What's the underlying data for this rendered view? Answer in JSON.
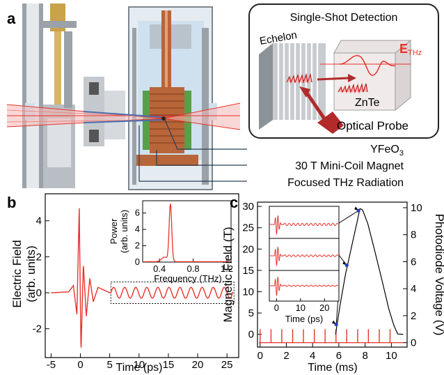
{
  "panel_labels": {
    "a": "a",
    "b": "b",
    "c": "c"
  },
  "panel_a": {
    "inset_title": "Single-Shot Detection",
    "echelon_label": "Echelon",
    "thz_label_main": "E",
    "thz_label_sub": "THz",
    "znte_label": "ZnTe",
    "probe_label": "Optical Probe",
    "callouts": [
      {
        "main": "YFeO",
        "sub": "3"
      },
      {
        "main": "30 T Mini-Coil Magnet",
        "sub": ""
      },
      {
        "main": "Focused THz Radiation",
        "sub": ""
      }
    ],
    "colors": {
      "beam_red": "#e8332a",
      "pink_light": "#f4b6b4",
      "steel": "#b9bec4",
      "copper": "#b8653a",
      "coil_green": "#5a9e4a",
      "dewar_blue": "#cfe1ee"
    }
  },
  "chart_data": [
    {
      "type": "line",
      "panel": "b",
      "xlabel": "Time (ps)",
      "ylabel": "Electric Field\n(arb. units)",
      "xlim": [
        -6,
        27
      ],
      "ylim": [
        -3.6,
        5.5
      ],
      "xticks": [
        -5,
        0,
        5,
        10,
        15,
        20,
        25
      ],
      "yticks": [
        -2,
        0,
        2,
        4
      ],
      "color": "#e8332a",
      "waveform_keypoints": {
        "t": [
          -5,
          -2,
          -1.2,
          -0.6,
          -0.2,
          0.1,
          0.5,
          1.0,
          1.6,
          2.2,
          3.0,
          5.0
        ],
        "E": [
          0,
          0.05,
          0.4,
          -1.2,
          4.7,
          -3.3,
          1.6,
          -1.3,
          0.8,
          -0.5,
          0.3,
          0
        ]
      },
      "ringing": {
        "t_start": 5.2,
        "t_end": 26,
        "frequency_thz": 0.53,
        "amplitude": 0.3
      },
      "zoom_box": {
        "t": [
          5.2,
          26.2
        ],
        "E": [
          -0.6,
          0.6
        ]
      },
      "inset": {
        "type": "line",
        "xlabel": "Frequency (THz)",
        "ylabel": "Power\n(arb. units)",
        "xlim": [
          0.2,
          1.25
        ],
        "ylim": [
          0,
          7.5
        ],
        "xticks": [
          0.4,
          0.8,
          1.2
        ],
        "xtick_labels": [
          "0.4",
          "0.8",
          "1.2"
        ],
        "yticks": [
          0,
          2,
          4,
          6
        ],
        "peak": {
          "x": 0.53,
          "y": 7.0
        }
      }
    },
    {
      "type": "line",
      "panel": "c",
      "xlabel": "Time (ms)",
      "ylabel": "Magnetic Field (T)",
      "y2label": "Photodiode Voltage (V)",
      "xlim": [
        -0.2,
        11.2
      ],
      "ylim": [
        -3,
        31
      ],
      "xticks": [
        0,
        2,
        4,
        6,
        8,
        10
      ],
      "yticks": [
        0,
        5,
        10,
        15,
        20,
        25,
        30
      ],
      "y2ticks": [
        0,
        2,
        4,
        6,
        8,
        10
      ],
      "field_pulse": {
        "t": [
          5.75,
          6.1,
          6.5,
          7.0,
          7.4,
          7.6,
          7.8,
          8.2,
          8.7,
          9.3,
          9.8,
          10.2,
          10.5
        ],
        "B": [
          0,
          7,
          14,
          21,
          26.5,
          29.5,
          29.2,
          26,
          20,
          12.5,
          6,
          2,
          0
        ]
      },
      "sample_points": [
        {
          "t": 5.8,
          "B": 2.3
        },
        {
          "t": 6.6,
          "B": 16.2
        },
        {
          "t": 7.5,
          "B": 29.0
        }
      ],
      "photodiode_spike_times": [
        0.0,
        0.83,
        1.65,
        2.48,
        3.3,
        4.13,
        4.95,
        5.78,
        6.6,
        7.43,
        8.25,
        9.08,
        9.9
      ],
      "spike_color": "#e8332a",
      "point_color": "#2340c8",
      "inset": {
        "type": "line",
        "xlabel": "Time (ps)",
        "xlim": [
          -3,
          26
        ],
        "xticks": [
          0,
          10,
          20
        ],
        "traces": 3
      }
    }
  ]
}
